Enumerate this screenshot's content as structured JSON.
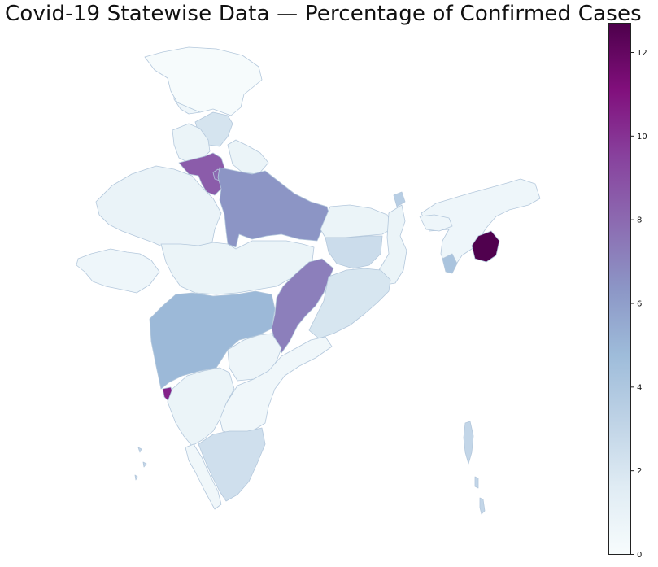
{
  "title": "Covid-19 Statewise Data — Percentage of Confirmed Cases",
  "colormap": {
    "name": "BuPu",
    "min": 0,
    "max": 12.7,
    "stops": [
      "#f7fcfd",
      "#e0ecf4",
      "#bfd3e6",
      "#9ebcda",
      "#8c96c6",
      "#8c6bb1",
      "#88419d",
      "#810f7c",
      "#4d004b"
    ]
  },
  "colorbar": {
    "ticks": [
      0,
      2,
      4,
      6,
      8,
      10,
      12
    ]
  },
  "chart_data": {
    "type": "choropleth",
    "title": "Covid-19 Statewise Data — Percentage of Confirmed Cases",
    "value_range": [
      0,
      12.7
    ],
    "legend": "colorbar right",
    "regions": [
      {
        "id": "jammu-kashmir",
        "value": 0.6
      },
      {
        "id": "ladakh",
        "value": 0.1
      },
      {
        "id": "himachal-pradesh",
        "value": 2.1
      },
      {
        "id": "punjab",
        "value": 0.8
      },
      {
        "id": "uttarakhand",
        "value": 0.8
      },
      {
        "id": "haryana",
        "value": 8.5
      },
      {
        "id": "delhi",
        "value": 8.0
      },
      {
        "id": "rajasthan",
        "value": 0.9
      },
      {
        "id": "uttar-pradesh",
        "value": 6.4
      },
      {
        "id": "bihar",
        "value": 0.8
      },
      {
        "id": "gujarat",
        "value": 0.6
      },
      {
        "id": "madhya-pradesh",
        "value": 0.8
      },
      {
        "id": "jharkhand",
        "value": 2.6
      },
      {
        "id": "west-bengal",
        "value": 0.8
      },
      {
        "id": "sikkim",
        "value": 3.5
      },
      {
        "id": "chhattisgarh",
        "value": 7.2
      },
      {
        "id": "odisha",
        "value": 2.0
      },
      {
        "id": "maharashtra",
        "value": 4.9
      },
      {
        "id": "telangana",
        "value": 0.7
      },
      {
        "id": "andhra-pradesh",
        "value": 0.5
      },
      {
        "id": "goa",
        "value": 10.5
      },
      {
        "id": "karnataka",
        "value": 0.8
      },
      {
        "id": "kerala",
        "value": 0.5
      },
      {
        "id": "tamil-nadu",
        "value": 2.4
      },
      {
        "id": "northeast",
        "value": 0.6
      },
      {
        "id": "meghalaya",
        "value": 0.6
      },
      {
        "id": "manipur",
        "value": 12.6
      },
      {
        "id": "tripura",
        "value": 4.2
      },
      {
        "id": "andaman-nicobar",
        "value": 3.0
      },
      {
        "id": "lakshadweep",
        "value": 3.0
      }
    ]
  }
}
